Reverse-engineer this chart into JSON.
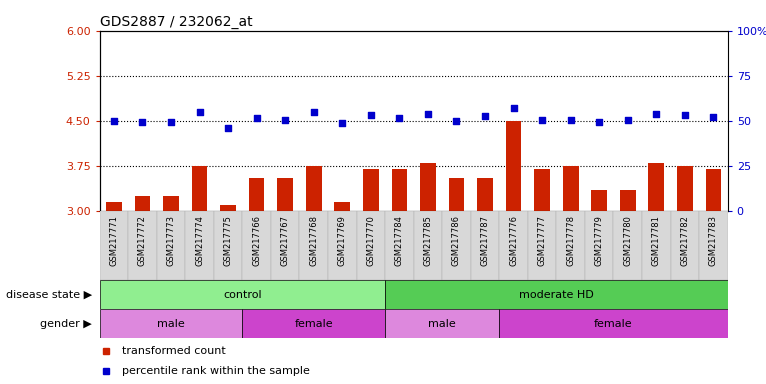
{
  "title": "GDS2887 / 232062_at",
  "samples": [
    "GSM217771",
    "GSM217772",
    "GSM217773",
    "GSM217774",
    "GSM217775",
    "GSM217766",
    "GSM217767",
    "GSM217768",
    "GSM217769",
    "GSM217770",
    "GSM217784",
    "GSM217785",
    "GSM217786",
    "GSM217787",
    "GSM217776",
    "GSM217777",
    "GSM217778",
    "GSM217779",
    "GSM217780",
    "GSM217781",
    "GSM217782",
    "GSM217783"
  ],
  "bar_values": [
    3.15,
    3.25,
    3.25,
    3.75,
    3.1,
    3.55,
    3.55,
    3.75,
    3.15,
    3.7,
    3.7,
    3.8,
    3.55,
    3.55,
    4.5,
    3.7,
    3.75,
    3.35,
    3.35,
    3.8,
    3.75,
    3.7
  ],
  "dot_values": [
    4.5,
    4.48,
    4.48,
    4.65,
    4.38,
    4.55,
    4.52,
    4.65,
    4.47,
    4.6,
    4.55,
    4.62,
    4.5,
    4.58,
    4.72,
    4.52,
    4.52,
    4.48,
    4.52,
    4.62,
    4.6,
    4.57
  ],
  "ylim_left": [
    3.0,
    6.0
  ],
  "ylim_right": [
    0,
    100
  ],
  "yticks_left": [
    3.0,
    3.75,
    4.5,
    5.25,
    6.0
  ],
  "yticks_right": [
    0,
    25,
    50,
    75,
    100
  ],
  "hlines": [
    3.75,
    4.5,
    5.25
  ],
  "bar_color": "#CC2200",
  "dot_color": "#0000CC",
  "bar_bottom": 3.0,
  "disease_state_groups": [
    {
      "label": "control",
      "start": 0,
      "end": 10,
      "color": "#90EE90"
    },
    {
      "label": "moderate HD",
      "start": 10,
      "end": 22,
      "color": "#55CC55"
    }
  ],
  "gender_groups": [
    {
      "label": "male",
      "start": 0,
      "end": 5,
      "color": "#DD88DD"
    },
    {
      "label": "female",
      "start": 5,
      "end": 10,
      "color": "#CC44CC"
    },
    {
      "label": "male",
      "start": 10,
      "end": 14,
      "color": "#DD88DD"
    },
    {
      "label": "female",
      "start": 14,
      "end": 22,
      "color": "#CC44CC"
    }
  ],
  "legend_items": [
    {
      "label": "transformed count",
      "color": "#CC2200",
      "marker": "s"
    },
    {
      "label": "percentile rank within the sample",
      "color": "#0000CC",
      "marker": "s"
    }
  ],
  "left_labels": [
    "disease state",
    "gender"
  ],
  "bg_color": "#FFFFFF"
}
